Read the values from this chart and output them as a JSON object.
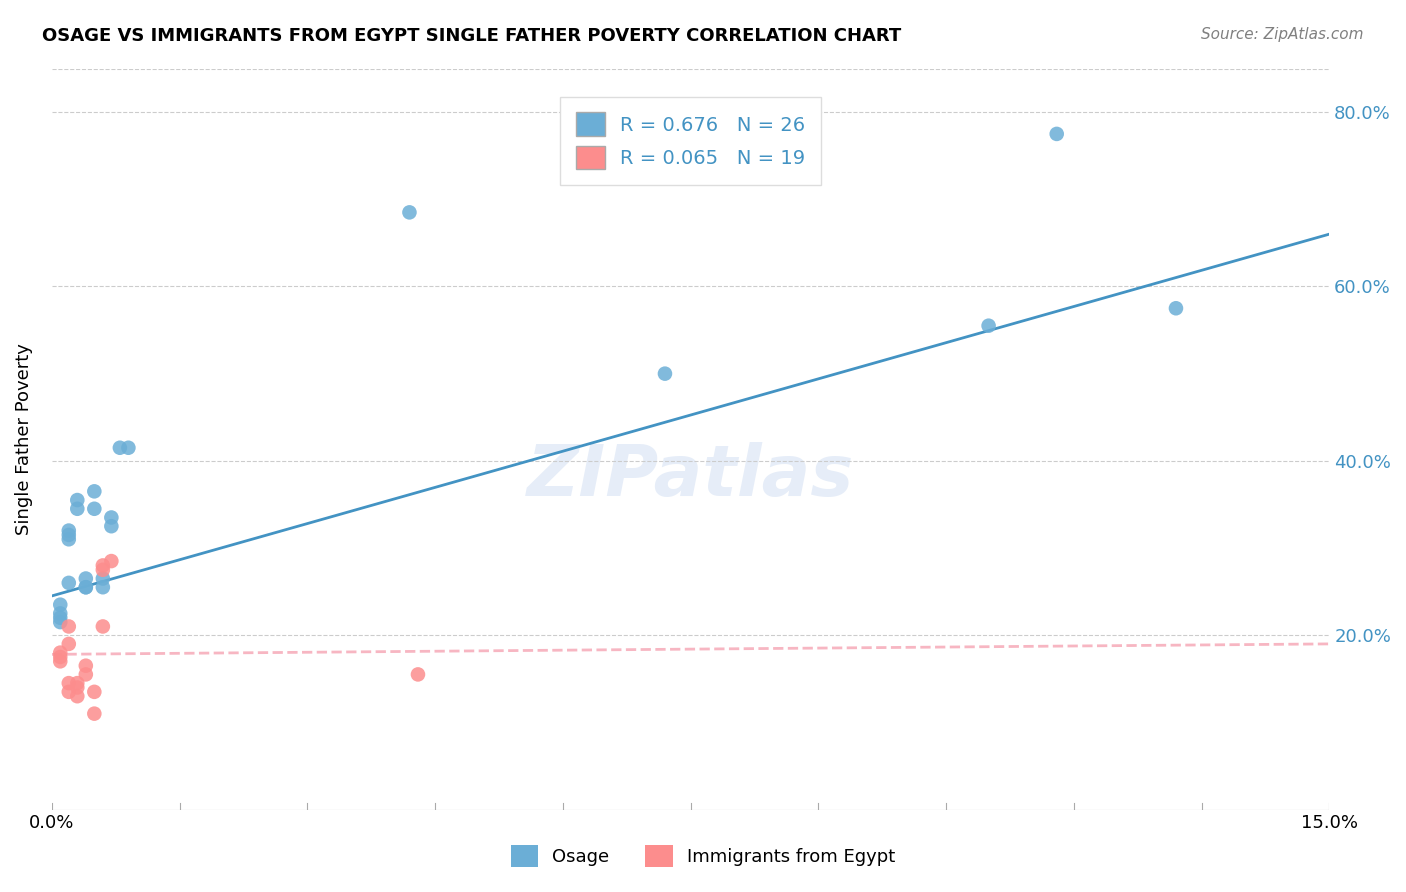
{
  "title": "OSAGE VS IMMIGRANTS FROM EGYPT SINGLE FATHER POVERTY CORRELATION CHART",
  "source": "Source: ZipAtlas.com",
  "ylabel": "Single Father Poverty",
  "legend_label1": "Osage",
  "legend_label2": "Immigrants from Egypt",
  "R1": 0.676,
  "N1": 26,
  "R2": 0.065,
  "N2": 19,
  "color_osage": "#6baed6",
  "color_egypt": "#fc8d8d",
  "color_line1": "#4393c3",
  "color_line2": "#f7b6c2",
  "watermark": "ZIPatlas",
  "osage_x": [
    0.001,
    0.001,
    0.001,
    0.001,
    0.002,
    0.002,
    0.002,
    0.002,
    0.003,
    0.003,
    0.004,
    0.004,
    0.004,
    0.005,
    0.005,
    0.006,
    0.006,
    0.007,
    0.007,
    0.008,
    0.009,
    0.042,
    0.072,
    0.11,
    0.118,
    0.132
  ],
  "osage_y": [
    0.215,
    0.22,
    0.225,
    0.235,
    0.31,
    0.315,
    0.32,
    0.26,
    0.355,
    0.345,
    0.255,
    0.255,
    0.265,
    0.345,
    0.365,
    0.255,
    0.265,
    0.325,
    0.335,
    0.415,
    0.415,
    0.685,
    0.5,
    0.555,
    0.775,
    0.575
  ],
  "egypt_x": [
    0.001,
    0.001,
    0.001,
    0.002,
    0.002,
    0.002,
    0.002,
    0.003,
    0.003,
    0.003,
    0.004,
    0.004,
    0.005,
    0.005,
    0.006,
    0.006,
    0.006,
    0.007,
    0.043
  ],
  "egypt_y": [
    0.17,
    0.175,
    0.18,
    0.145,
    0.135,
    0.19,
    0.21,
    0.145,
    0.14,
    0.13,
    0.155,
    0.165,
    0.11,
    0.135,
    0.28,
    0.275,
    0.21,
    0.285,
    0.155
  ],
  "line1_x0": 0.0,
  "line1_y0": 0.245,
  "line1_x1": 0.15,
  "line1_y1": 0.66,
  "line2_x0": 0.0,
  "line2_y0": 0.178,
  "line2_x1": 0.15,
  "line2_y1": 0.19,
  "xlim": [
    0.0,
    0.15
  ],
  "ylim": [
    0.0,
    0.85
  ],
  "ytick_vals": [
    0.2,
    0.4,
    0.6,
    0.8
  ],
  "ytick_labels": [
    "20.0%",
    "40.0%",
    "60.0%",
    "80.0%"
  ],
  "title_fontsize": 13,
  "source_fontsize": 11,
  "tick_fontsize": 13,
  "legend_fontsize": 14
}
